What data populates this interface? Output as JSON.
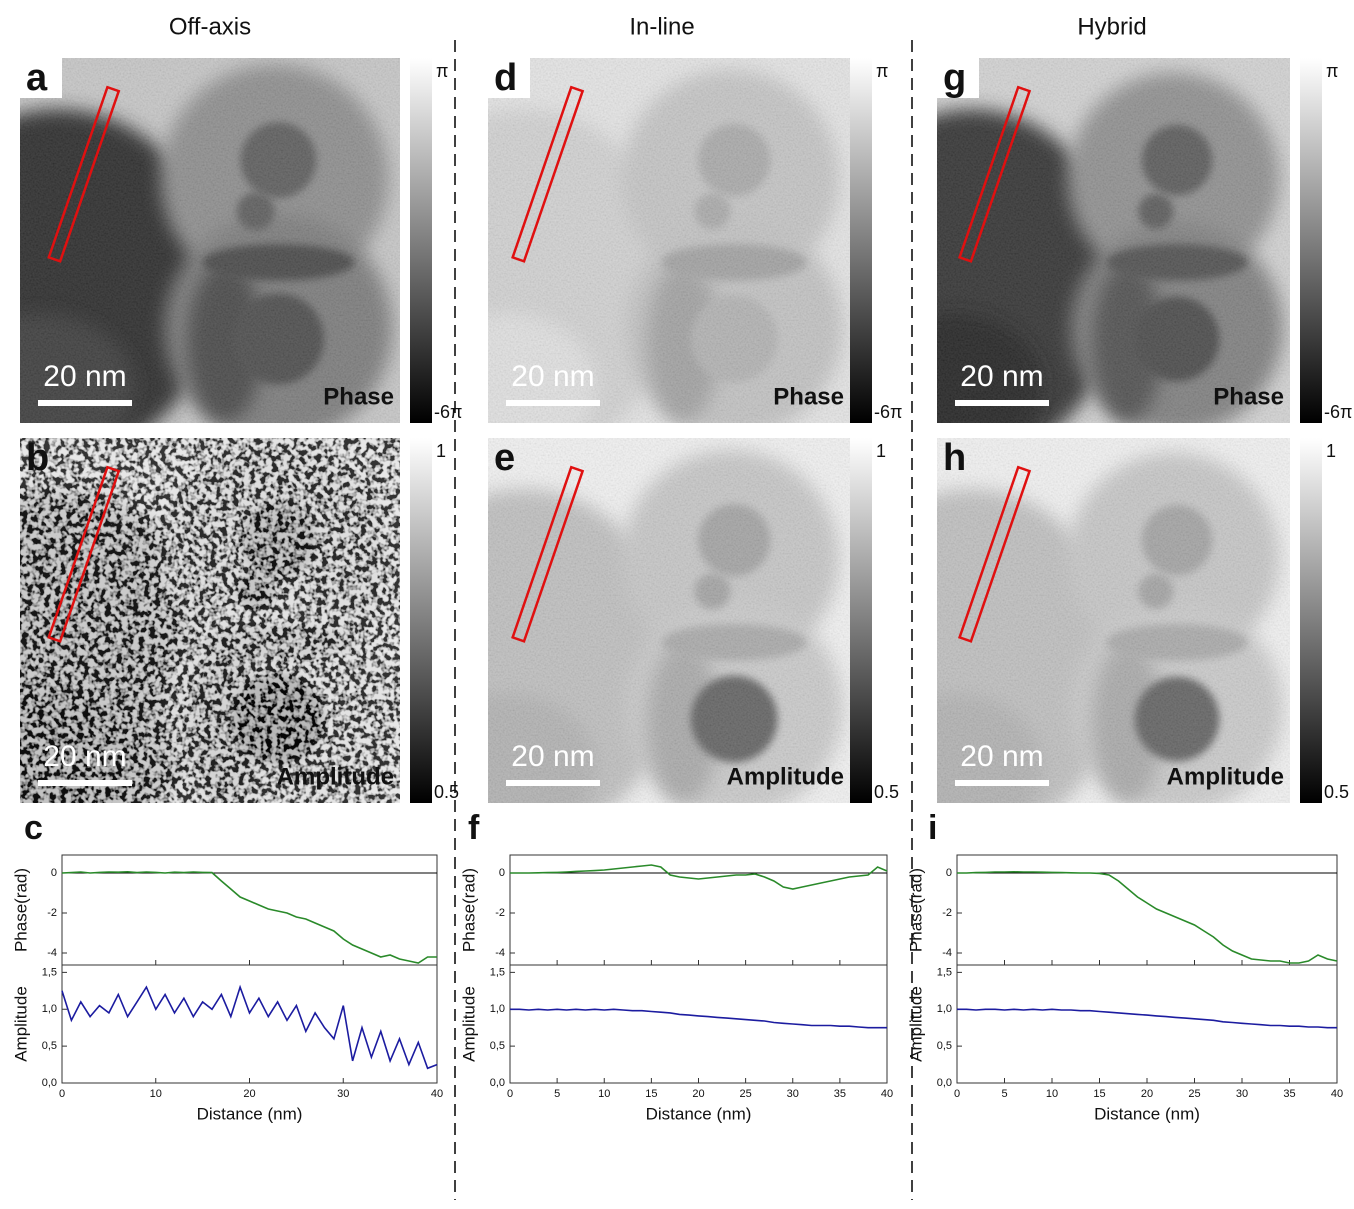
{
  "columns": [
    {
      "title": "Off-axis",
      "profile_letter": "c",
      "panels": [
        {
          "letter": "a",
          "label": "Phase",
          "scale_bar": "20 nm",
          "colorbar_top": "π",
          "colorbar_bottom": "-6π"
        },
        {
          "letter": "b",
          "label": "Amplitude",
          "scale_bar": "20 nm",
          "colorbar_top": "1",
          "colorbar_bottom": "0.5"
        }
      ]
    },
    {
      "title": "In-line",
      "profile_letter": "f",
      "panels": [
        {
          "letter": "d",
          "label": "Phase",
          "scale_bar": "20 nm",
          "colorbar_top": "π",
          "colorbar_bottom": "-6π"
        },
        {
          "letter": "e",
          "label": "Amplitude",
          "scale_bar": "20 nm",
          "colorbar_top": "1",
          "colorbar_bottom": "0.5"
        }
      ]
    },
    {
      "title": "Hybrid",
      "profile_letter": "i",
      "panels": [
        {
          "letter": "g",
          "label": "Phase",
          "scale_bar": "20 nm",
          "colorbar_top": "π",
          "colorbar_bottom": "-6π"
        },
        {
          "letter": "h",
          "label": "Amplitude",
          "scale_bar": "20 nm",
          "colorbar_top": "1",
          "colorbar_bottom": "0.5"
        }
      ]
    }
  ],
  "chart_data": [
    {
      "type": "line",
      "ylabel": "Phase(rad)",
      "hline": 0,
      "x": [
        0,
        1,
        2,
        3,
        4,
        5,
        6,
        7,
        8,
        9,
        10,
        11,
        12,
        13,
        14,
        15,
        16,
        17,
        18,
        19,
        20,
        21,
        22,
        23,
        24,
        25,
        26,
        27,
        28,
        29,
        30,
        31,
        32,
        33,
        34,
        35,
        36,
        37,
        38,
        39,
        40
      ],
      "series": [
        {
          "color": "#2a8a2a",
          "values": [
            0,
            0.02,
            0.05,
            0,
            0.03,
            0.05,
            0.04,
            0.06,
            0.02,
            0.05,
            0.03,
            0,
            0.04,
            0.02,
            0.05,
            0.03,
            0.02,
            -0.4,
            -0.8,
            -1.2,
            -1.4,
            -1.6,
            -1.8,
            -1.9,
            -2.0,
            -2.2,
            -2.3,
            -2.5,
            -2.7,
            -2.9,
            -3.3,
            -3.6,
            -3.8,
            -4.0,
            -4.2,
            -4.1,
            -4.3,
            -4.4,
            -4.5,
            -4.2,
            -4.2
          ]
        }
      ],
      "xlim": [
        0,
        40
      ],
      "xticks": [
        0,
        10,
        20,
        30,
        40
      ],
      "ylim": [
        -4.6,
        0.9
      ],
      "yticks": [
        0,
        -2,
        -4
      ]
    },
    {
      "type": "line",
      "ylabel": "Amplitude",
      "xlabel": "Distance (nm)",
      "x": [
        0,
        1,
        2,
        3,
        4,
        5,
        6,
        7,
        8,
        9,
        10,
        11,
        12,
        13,
        14,
        15,
        16,
        17,
        18,
        19,
        20,
        21,
        22,
        23,
        24,
        25,
        26,
        27,
        28,
        29,
        30,
        31,
        32,
        33,
        34,
        35,
        36,
        37,
        38,
        39,
        40
      ],
      "series": [
        {
          "color": "#1c1ca0",
          "values": [
            1.25,
            0.85,
            1.1,
            0.9,
            1.05,
            0.95,
            1.2,
            0.9,
            1.1,
            1.3,
            1.0,
            1.2,
            0.95,
            1.15,
            0.9,
            1.1,
            1.0,
            1.2,
            0.9,
            1.3,
            0.95,
            1.15,
            0.9,
            1.1,
            0.85,
            1.05,
            0.7,
            0.95,
            0.75,
            0.6,
            1.05,
            0.3,
            0.75,
            0.35,
            0.7,
            0.3,
            0.6,
            0.25,
            0.55,
            0.2,
            0.25
          ]
        }
      ],
      "xlim": [
        0,
        40
      ],
      "xticks": [
        0,
        10,
        20,
        30,
        40
      ],
      "ylim": [
        0,
        1.6
      ],
      "yticks": [
        {
          "value": 0,
          "label": "0,0"
        },
        {
          "value": 0.5,
          "label": "0,5"
        },
        {
          "value": 1,
          "label": "1,0"
        },
        {
          "value": 1.5,
          "label": "1,5"
        }
      ]
    },
    {
      "type": "line",
      "ylabel": "Phase(rad)",
      "hline": 0,
      "x": [
        0,
        1,
        2,
        3,
        4,
        5,
        6,
        7,
        8,
        9,
        10,
        11,
        12,
        13,
        14,
        15,
        16,
        17,
        18,
        19,
        20,
        21,
        22,
        23,
        24,
        25,
        26,
        27,
        28,
        29,
        30,
        31,
        32,
        33,
        34,
        35,
        36,
        37,
        38,
        39,
        40
      ],
      "series": [
        {
          "color": "#2a8a2a",
          "values": [
            0,
            0,
            0,
            0.01,
            0.02,
            0.03,
            0.05,
            0.08,
            0.1,
            0.12,
            0.15,
            0.2,
            0.25,
            0.3,
            0.35,
            0.4,
            0.3,
            -0.1,
            -0.2,
            -0.25,
            -0.3,
            -0.25,
            -0.2,
            -0.15,
            -0.1,
            -0.1,
            -0.05,
            -0.2,
            -0.4,
            -0.7,
            -0.8,
            -0.7,
            -0.6,
            -0.5,
            -0.4,
            -0.3,
            -0.2,
            -0.15,
            -0.1,
            0.3,
            0.1
          ]
        }
      ],
      "xlim": [
        0,
        40
      ],
      "xticks": [
        0,
        5,
        10,
        15,
        20,
        25,
        30,
        35,
        40
      ],
      "ylim": [
        -4.6,
        0.9
      ],
      "yticks": [
        0,
        -2,
        -4
      ]
    },
    {
      "type": "line",
      "ylabel": "Amplitude",
      "xlabel": "Distance (nm)",
      "x": [
        0,
        1,
        2,
        3,
        4,
        5,
        6,
        7,
        8,
        9,
        10,
        11,
        12,
        13,
        14,
        15,
        16,
        17,
        18,
        19,
        20,
        21,
        22,
        23,
        24,
        25,
        26,
        27,
        28,
        29,
        30,
        31,
        32,
        33,
        34,
        35,
        36,
        37,
        38,
        39,
        40
      ],
      "series": [
        {
          "color": "#1c1ca0",
          "values": [
            1,
            1,
            0.99,
            1,
            0.99,
            1,
            0.99,
            1,
            0.99,
            1,
            0.99,
            1,
            0.99,
            0.98,
            0.98,
            0.97,
            0.96,
            0.95,
            0.93,
            0.92,
            0.91,
            0.9,
            0.89,
            0.88,
            0.87,
            0.86,
            0.85,
            0.84,
            0.82,
            0.81,
            0.8,
            0.79,
            0.78,
            0.78,
            0.78,
            0.77,
            0.77,
            0.76,
            0.75,
            0.75,
            0.75
          ]
        }
      ],
      "xlim": [
        0,
        40
      ],
      "xticks": [
        0,
        5,
        10,
        15,
        20,
        25,
        30,
        35,
        40
      ],
      "ylim": [
        0,
        1.6
      ],
      "yticks": [
        {
          "value": 0,
          "label": "0,0"
        },
        {
          "value": 0.5,
          "label": "0,5"
        },
        {
          "value": 1,
          "label": "1,0"
        },
        {
          "value": 1.5,
          "label": "1,5"
        }
      ]
    },
    {
      "type": "line",
      "ylabel": "Phase(rad)",
      "hline": 0,
      "x": [
        0,
        1,
        2,
        3,
        4,
        5,
        6,
        7,
        8,
        9,
        10,
        11,
        12,
        13,
        14,
        15,
        16,
        17,
        18,
        19,
        20,
        21,
        22,
        23,
        24,
        25,
        26,
        27,
        28,
        29,
        30,
        31,
        32,
        33,
        34,
        35,
        36,
        37,
        38,
        39,
        40
      ],
      "series": [
        {
          "color": "#2a8a2a",
          "values": [
            0,
            0,
            0.02,
            0.03,
            0.05,
            0.05,
            0.06,
            0.05,
            0.05,
            0.04,
            0.03,
            0.02,
            0.01,
            0,
            0,
            -0.02,
            -0.1,
            -0.4,
            -0.8,
            -1.2,
            -1.5,
            -1.8,
            -2.0,
            -2.2,
            -2.4,
            -2.6,
            -2.9,
            -3.2,
            -3.6,
            -3.9,
            -4.1,
            -4.3,
            -4.35,
            -4.4,
            -4.4,
            -4.5,
            -4.5,
            -4.4,
            -4.1,
            -4.3,
            -4.4
          ]
        }
      ],
      "xlim": [
        0,
        40
      ],
      "xticks": [
        0,
        5,
        10,
        15,
        20,
        25,
        30,
        35,
        40
      ],
      "ylim": [
        -4.6,
        0.9
      ],
      "yticks": [
        0,
        -2,
        -4
      ]
    },
    {
      "type": "line",
      "ylabel": "Amplitude",
      "xlabel": "Distance (nm)",
      "x": [
        0,
        1,
        2,
        3,
        4,
        5,
        6,
        7,
        8,
        9,
        10,
        11,
        12,
        13,
        14,
        15,
        16,
        17,
        18,
        19,
        20,
        21,
        22,
        23,
        24,
        25,
        26,
        27,
        28,
        29,
        30,
        31,
        32,
        33,
        34,
        35,
        36,
        37,
        38,
        39,
        40
      ],
      "series": [
        {
          "color": "#1c1ca0",
          "values": [
            1,
            1,
            0.99,
            1,
            1,
            0.99,
            1,
            0.99,
            1,
            0.99,
            1,
            0.99,
            0.99,
            0.98,
            0.98,
            0.97,
            0.96,
            0.95,
            0.94,
            0.93,
            0.92,
            0.91,
            0.9,
            0.89,
            0.88,
            0.87,
            0.86,
            0.85,
            0.83,
            0.82,
            0.81,
            0.8,
            0.79,
            0.78,
            0.78,
            0.77,
            0.77,
            0.76,
            0.76,
            0.75,
            0.75
          ]
        }
      ],
      "xlim": [
        0,
        40
      ],
      "xticks": [
        0,
        5,
        10,
        15,
        20,
        25,
        30,
        35,
        40
      ],
      "ylim": [
        0,
        1.6
      ],
      "yticks": [
        {
          "value": 0,
          "label": "0,0"
        },
        {
          "value": 0.5,
          "label": "0,5"
        },
        {
          "value": 1,
          "label": "1,0"
        },
        {
          "value": 1.5,
          "label": "1,5"
        }
      ]
    }
  ]
}
